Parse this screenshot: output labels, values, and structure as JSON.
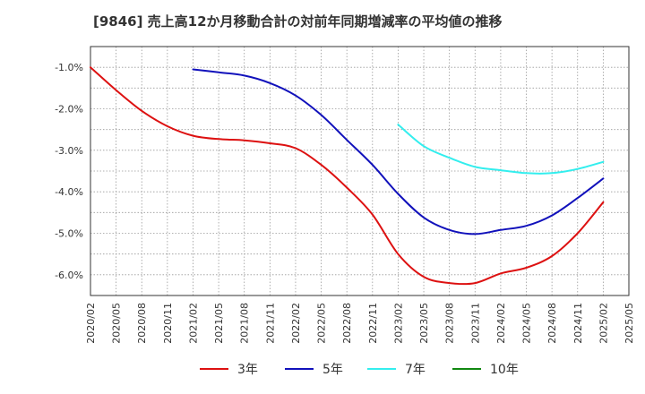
{
  "chart_data": {
    "type": "line",
    "title": "[9846]  売上高12か月移動合計の対前年同期増減率の平均値の推移",
    "xlabel": "",
    "ylabel": "",
    "x_ticks": [
      "2020/02",
      "2020/05",
      "2020/08",
      "2020/11",
      "2021/02",
      "2021/05",
      "2021/08",
      "2021/11",
      "2022/02",
      "2022/05",
      "2022/08",
      "2022/11",
      "2023/02",
      "2023/05",
      "2023/08",
      "2023/11",
      "2024/02",
      "2024/05",
      "2024/08",
      "2024/11",
      "2025/02",
      "2025/05"
    ],
    "ylim": [
      -6.5,
      -0.5
    ],
    "y_ticks": [
      -1.0,
      -2.0,
      -3.0,
      -4.0,
      -5.0,
      -6.0
    ],
    "y_tick_labels": [
      "-1.0%",
      "-2.0%",
      "-3.0%",
      "-4.0%",
      "-5.0%",
      "-6.0%"
    ],
    "grid": true,
    "legend_position": "bottom",
    "series": [
      {
        "name": "3年",
        "color": "#dd1111",
        "x": [
          "2020/02",
          "2020/05",
          "2020/08",
          "2020/11",
          "2021/02",
          "2021/05",
          "2021/08",
          "2021/11",
          "2022/02",
          "2022/05",
          "2022/08",
          "2022/11",
          "2023/02",
          "2023/05",
          "2023/08",
          "2023/11",
          "2024/02",
          "2024/05",
          "2024/08",
          "2024/11",
          "2025/02"
        ],
        "values": [
          -1.0,
          -1.55,
          -2.05,
          -2.42,
          -2.65,
          -2.73,
          -2.76,
          -2.83,
          -2.95,
          -3.35,
          -3.9,
          -4.55,
          -5.5,
          -6.05,
          -6.2,
          -6.2,
          -5.97,
          -5.83,
          -5.55,
          -5.0,
          -4.25
        ]
      },
      {
        "name": "5年",
        "color": "#1111bb",
        "x": [
          "2021/02",
          "2021/05",
          "2021/08",
          "2021/11",
          "2022/02",
          "2022/05",
          "2022/08",
          "2022/11",
          "2023/02",
          "2023/05",
          "2023/08",
          "2023/11",
          "2024/02",
          "2024/05",
          "2024/08",
          "2024/11",
          "2025/02"
        ],
        "values": [
          -1.05,
          -1.12,
          -1.2,
          -1.38,
          -1.68,
          -2.15,
          -2.75,
          -3.35,
          -4.05,
          -4.62,
          -4.92,
          -5.02,
          -4.92,
          -4.82,
          -4.57,
          -4.15,
          -3.68
        ]
      },
      {
        "name": "7年",
        "color": "#33eeee",
        "x": [
          "2023/02",
          "2023/05",
          "2023/08",
          "2023/11",
          "2024/02",
          "2024/05",
          "2024/08",
          "2024/11",
          "2025/02"
        ],
        "values": [
          -2.38,
          -2.9,
          -3.18,
          -3.4,
          -3.48,
          -3.55,
          -3.55,
          -3.45,
          -3.28
        ]
      },
      {
        "name": "10年",
        "color": "#118811",
        "x": [],
        "values": []
      }
    ]
  }
}
